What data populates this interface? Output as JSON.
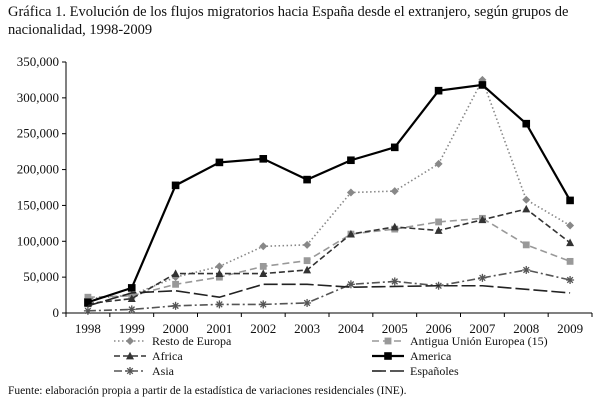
{
  "title_text": "Gráfica 1. Evolución de los flujos migratorios hacia España desde el extranjero, según grupos de nacionalidad, 1998-2009",
  "source_text": "Fuente: elaboración propia a partir de la estadística de variaciones residenciales (INE).",
  "chart_data": {
    "type": "line",
    "title": "Gráfica 1. Evolución de los flujos migratorios hacia España desde el extranjero, según grupos de nacionalidad, 1998-2009",
    "xlabel": "",
    "ylabel": "",
    "ylim": [
      0,
      350000
    ],
    "yticks": [
      0,
      50000,
      100000,
      150000,
      200000,
      250000,
      300000,
      350000
    ],
    "ytick_labels": [
      "0",
      "50,000",
      "100,000",
      "150,000",
      "200,000",
      "250,000",
      "300,000",
      "350,000"
    ],
    "categories": [
      "1998",
      "1999",
      "2000",
      "2001",
      "2002",
      "2003",
      "2004",
      "2005",
      "2006",
      "2007",
      "2008",
      "2009"
    ],
    "grid": false,
    "legend_position": "bottom",
    "series": [
      {
        "name": "Resto de Europa",
        "style": "dotted-diamond",
        "color": "#888888",
        "values": [
          20000,
          25000,
          50000,
          65000,
          93000,
          95000,
          168000,
          170000,
          208000,
          325000,
          158000,
          122000
        ]
      },
      {
        "name": "Antigua Unión Europea (15)",
        "style": "dashed-square",
        "color": "#999999",
        "values": [
          22000,
          24000,
          40000,
          50000,
          65000,
          73000,
          110000,
          117000,
          127000,
          132000,
          95000,
          72000
        ]
      },
      {
        "name": "Africa",
        "style": "dashed-triangle",
        "color": "#333333",
        "values": [
          13000,
          20000,
          55000,
          55000,
          55000,
          60000,
          110000,
          120000,
          115000,
          130000,
          145000,
          98000
        ]
      },
      {
        "name": "America",
        "style": "solid-square",
        "color": "#000000",
        "values": [
          15000,
          35000,
          178000,
          210000,
          215000,
          186000,
          213000,
          231000,
          310000,
          318000,
          264000,
          157000
        ]
      },
      {
        "name": "Asia",
        "style": "dashdot-star",
        "color": "#555555",
        "values": [
          3000,
          5000,
          10000,
          12000,
          12000,
          14000,
          40000,
          44000,
          38000,
          49000,
          60000,
          46000
        ]
      },
      {
        "name": "Españoles",
        "style": "longdash-plain",
        "color": "#222222",
        "values": [
          10000,
          28000,
          31000,
          22000,
          40000,
          40000,
          36000,
          37000,
          38000,
          38000,
          33000,
          28000
        ]
      }
    ]
  }
}
